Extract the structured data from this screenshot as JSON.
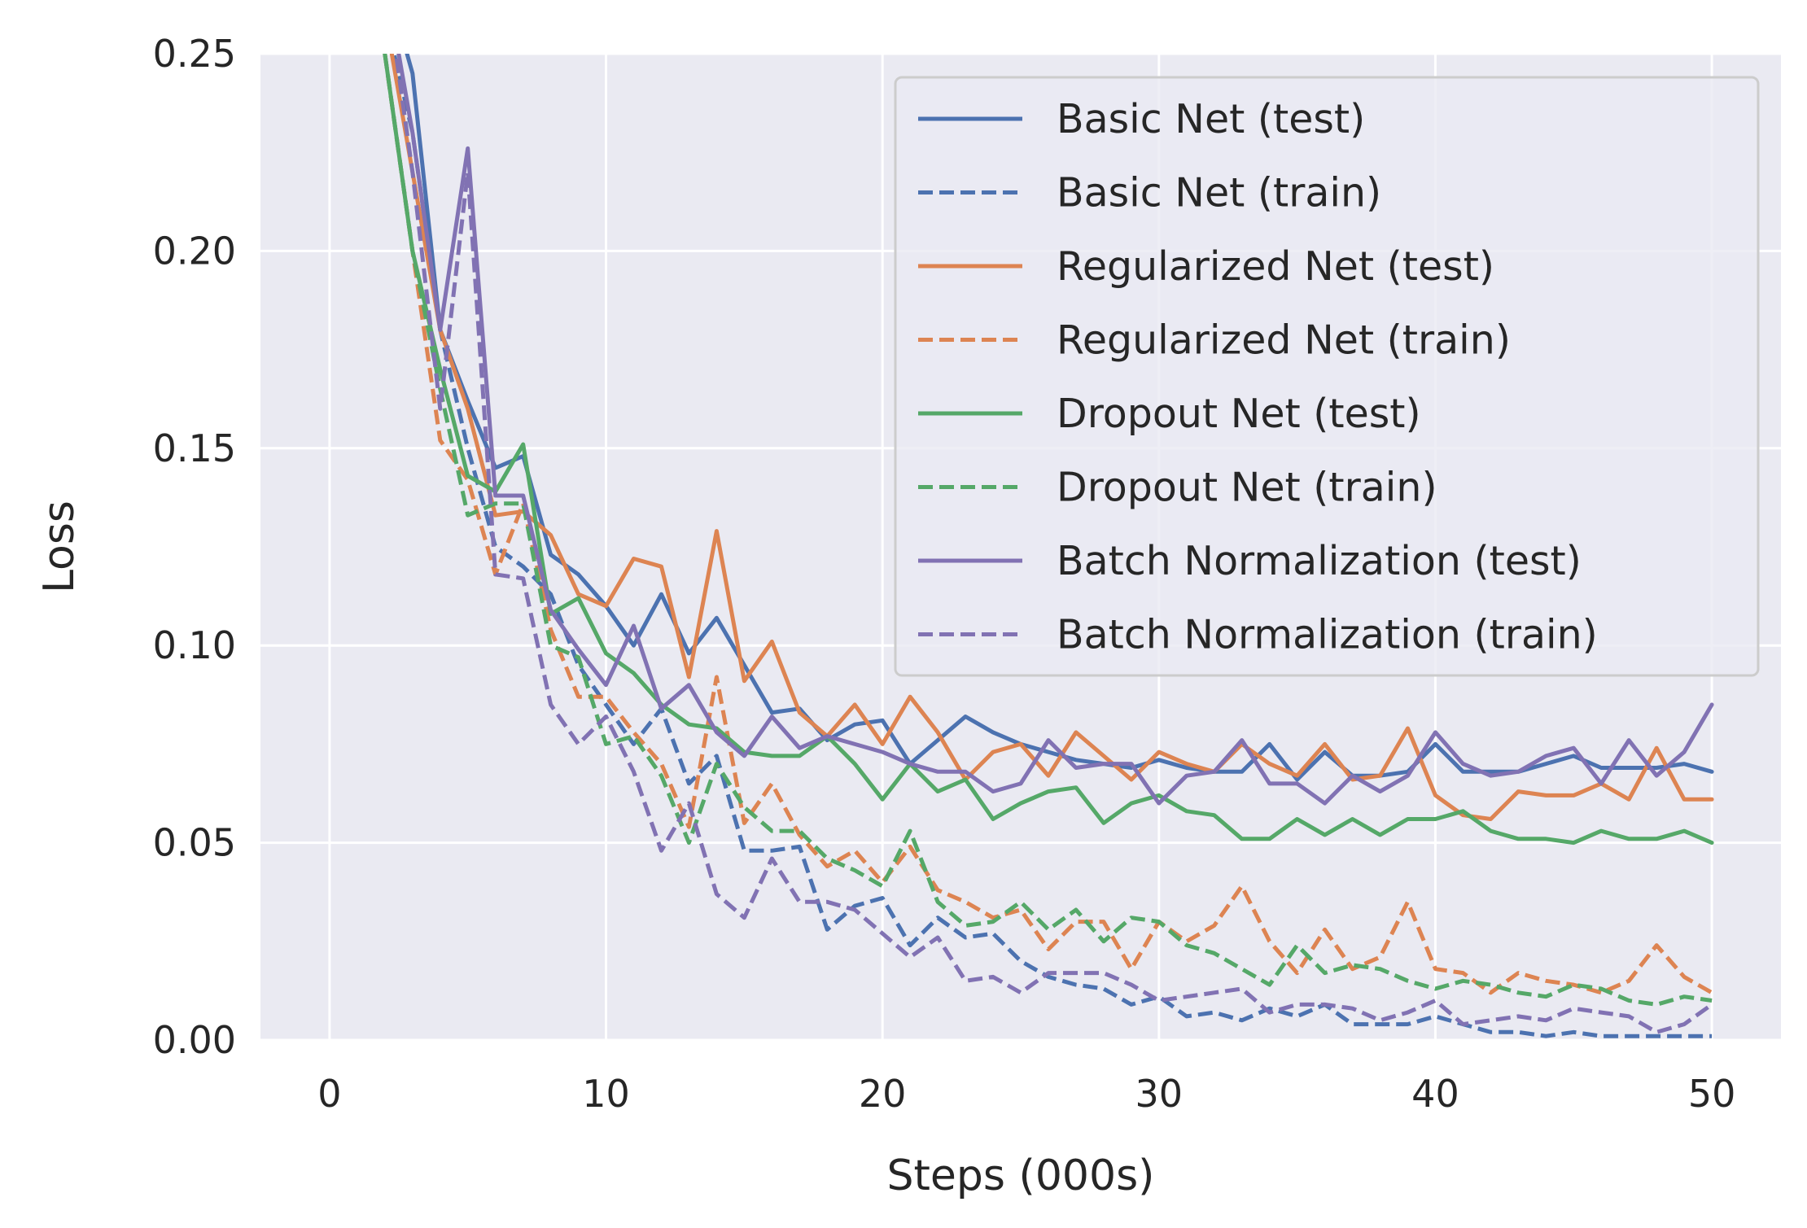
{
  "chart_data": {
    "type": "line",
    "title": "",
    "xlabel": "Steps (000s)",
    "ylabel": "Loss",
    "xlim": [
      -2.5,
      52.5
    ],
    "ylim": [
      0,
      0.25
    ],
    "xticks": [
      0,
      10,
      20,
      30,
      40,
      50
    ],
    "xtick_labels": [
      "0",
      "10",
      "20",
      "30",
      "40",
      "50"
    ],
    "yticks": [
      0,
      0.05,
      0.1,
      0.15,
      0.2,
      0.25
    ],
    "ytick_labels": [
      "0.00",
      "0.05",
      "0.10",
      "0.15",
      "0.20",
      "0.25"
    ],
    "grid": true,
    "background": "#eaeaf2",
    "legend_position": "top-right",
    "x": [
      2,
      3,
      4,
      5,
      6,
      7,
      8,
      9,
      10,
      11,
      12,
      13,
      14,
      15,
      16,
      17,
      18,
      19,
      20,
      21,
      22,
      23,
      24,
      25,
      26,
      27,
      28,
      29,
      30,
      31,
      32,
      33,
      34,
      35,
      36,
      37,
      38,
      39,
      40,
      41,
      42,
      43,
      44,
      45,
      46,
      47,
      48,
      49,
      50
    ],
    "series": [
      {
        "name": "Basic Net (test)",
        "color": "#4c72b0",
        "dash": "solid",
        "values": [
          0.27,
          0.245,
          0.18,
          0.162,
          0.145,
          0.148,
          0.123,
          0.118,
          0.11,
          0.1,
          0.113,
          0.098,
          0.107,
          0.095,
          0.083,
          0.084,
          0.076,
          0.08,
          0.081,
          0.07,
          0.076,
          0.082,
          0.078,
          0.075,
          0.073,
          0.071,
          0.07,
          0.069,
          0.071,
          0.069,
          0.068,
          0.068,
          0.075,
          0.066,
          0.073,
          0.067,
          0.067,
          0.068,
          0.075,
          0.068,
          0.068,
          0.068,
          0.07,
          0.072,
          0.069,
          0.069,
          0.069,
          0.07,
          0.068
        ]
      },
      {
        "name": "Basic Net (train)",
        "color": "#4c72b0",
        "dash": "dashed",
        "values": [
          0.26,
          0.23,
          0.18,
          0.15,
          0.125,
          0.12,
          0.113,
          0.095,
          0.085,
          0.075,
          0.084,
          0.065,
          0.072,
          0.048,
          0.048,
          0.049,
          0.028,
          0.034,
          0.036,
          0.024,
          0.031,
          0.026,
          0.027,
          0.02,
          0.016,
          0.014,
          0.013,
          0.009,
          0.011,
          0.006,
          0.007,
          0.005,
          0.008,
          0.006,
          0.009,
          0.004,
          0.004,
          0.004,
          0.006,
          0.004,
          0.002,
          0.002,
          0.001,
          0.002,
          0.001,
          0.001,
          0.001,
          0.001,
          0.001
        ]
      },
      {
        "name": "Regularized Net (test)",
        "color": "#dd8452",
        "dash": "solid",
        "values": [
          0.26,
          0.22,
          0.18,
          0.16,
          0.133,
          0.134,
          0.128,
          0.113,
          0.11,
          0.122,
          0.12,
          0.092,
          0.129,
          0.091,
          0.101,
          0.083,
          0.077,
          0.085,
          0.075,
          0.087,
          0.078,
          0.066,
          0.073,
          0.075,
          0.067,
          0.078,
          0.072,
          0.066,
          0.073,
          0.07,
          0.068,
          0.075,
          0.07,
          0.067,
          0.075,
          0.066,
          0.067,
          0.079,
          0.062,
          0.057,
          0.056,
          0.063,
          0.062,
          0.062,
          0.065,
          0.061,
          0.074,
          0.061,
          0.061
        ]
      },
      {
        "name": "Regularized Net (train)",
        "color": "#dd8452",
        "dash": "dashed",
        "values": [
          0.25,
          0.2,
          0.152,
          0.142,
          0.118,
          0.136,
          0.104,
          0.087,
          0.087,
          0.078,
          0.07,
          0.054,
          0.092,
          0.055,
          0.065,
          0.052,
          0.044,
          0.048,
          0.04,
          0.049,
          0.038,
          0.035,
          0.031,
          0.033,
          0.023,
          0.03,
          0.03,
          0.018,
          0.03,
          0.025,
          0.029,
          0.039,
          0.025,
          0.017,
          0.028,
          0.018,
          0.021,
          0.035,
          0.018,
          0.017,
          0.012,
          0.017,
          0.015,
          0.014,
          0.012,
          0.015,
          0.024,
          0.016,
          0.012
        ]
      },
      {
        "name": "Dropout Net (test)",
        "color": "#55a868",
        "dash": "solid",
        "values": [
          0.25,
          0.2,
          0.17,
          0.143,
          0.139,
          0.151,
          0.108,
          0.112,
          0.098,
          0.093,
          0.085,
          0.08,
          0.079,
          0.073,
          0.072,
          0.072,
          0.077,
          0.07,
          0.061,
          0.07,
          0.063,
          0.066,
          0.056,
          0.06,
          0.063,
          0.064,
          0.055,
          0.06,
          0.062,
          0.058,
          0.057,
          0.051,
          0.051,
          0.056,
          0.052,
          0.056,
          0.052,
          0.056,
          0.056,
          0.058,
          0.053,
          0.051,
          0.051,
          0.05,
          0.053,
          0.051,
          0.051,
          0.053,
          0.05
        ]
      },
      {
        "name": "Dropout Net (train)",
        "color": "#55a868",
        "dash": "dashed",
        "values": [
          0.25,
          0.2,
          0.165,
          0.133,
          0.136,
          0.136,
          0.1,
          0.097,
          0.075,
          0.077,
          0.067,
          0.05,
          0.07,
          0.059,
          0.053,
          0.053,
          0.046,
          0.043,
          0.039,
          0.053,
          0.035,
          0.029,
          0.03,
          0.035,
          0.028,
          0.033,
          0.025,
          0.031,
          0.03,
          0.024,
          0.022,
          0.018,
          0.014,
          0.024,
          0.017,
          0.019,
          0.018,
          0.015,
          0.013,
          0.015,
          0.014,
          0.012,
          0.011,
          0.014,
          0.013,
          0.01,
          0.009,
          0.011,
          0.01
        ]
      },
      {
        "name": "Batch Normalization (test)",
        "color": "#8172b3",
        "dash": "solid",
        "values": [
          0.27,
          0.23,
          0.18,
          0.226,
          0.138,
          0.138,
          0.109,
          0.099,
          0.09,
          0.105,
          0.084,
          0.09,
          0.078,
          0.072,
          0.082,
          0.074,
          0.077,
          0.075,
          0.073,
          0.07,
          0.068,
          0.068,
          0.063,
          0.065,
          0.076,
          0.069,
          0.07,
          0.07,
          0.06,
          0.067,
          0.068,
          0.076,
          0.065,
          0.065,
          0.06,
          0.067,
          0.063,
          0.067,
          0.078,
          0.07,
          0.067,
          0.068,
          0.072,
          0.074,
          0.065,
          0.076,
          0.067,
          0.073,
          0.085
        ]
      },
      {
        "name": "Batch Normalization (train)",
        "color": "#8172b3",
        "dash": "dashed",
        "values": [
          0.27,
          0.22,
          0.16,
          0.22,
          0.118,
          0.117,
          0.085,
          0.075,
          0.082,
          0.068,
          0.048,
          0.06,
          0.037,
          0.031,
          0.046,
          0.035,
          0.035,
          0.033,
          0.027,
          0.021,
          0.026,
          0.015,
          0.016,
          0.012,
          0.017,
          0.017,
          0.017,
          0.014,
          0.01,
          0.011,
          0.012,
          0.013,
          0.007,
          0.009,
          0.009,
          0.008,
          0.005,
          0.007,
          0.01,
          0.004,
          0.005,
          0.006,
          0.005,
          0.008,
          0.007,
          0.006,
          0.002,
          0.004,
          0.009
        ]
      }
    ]
  }
}
